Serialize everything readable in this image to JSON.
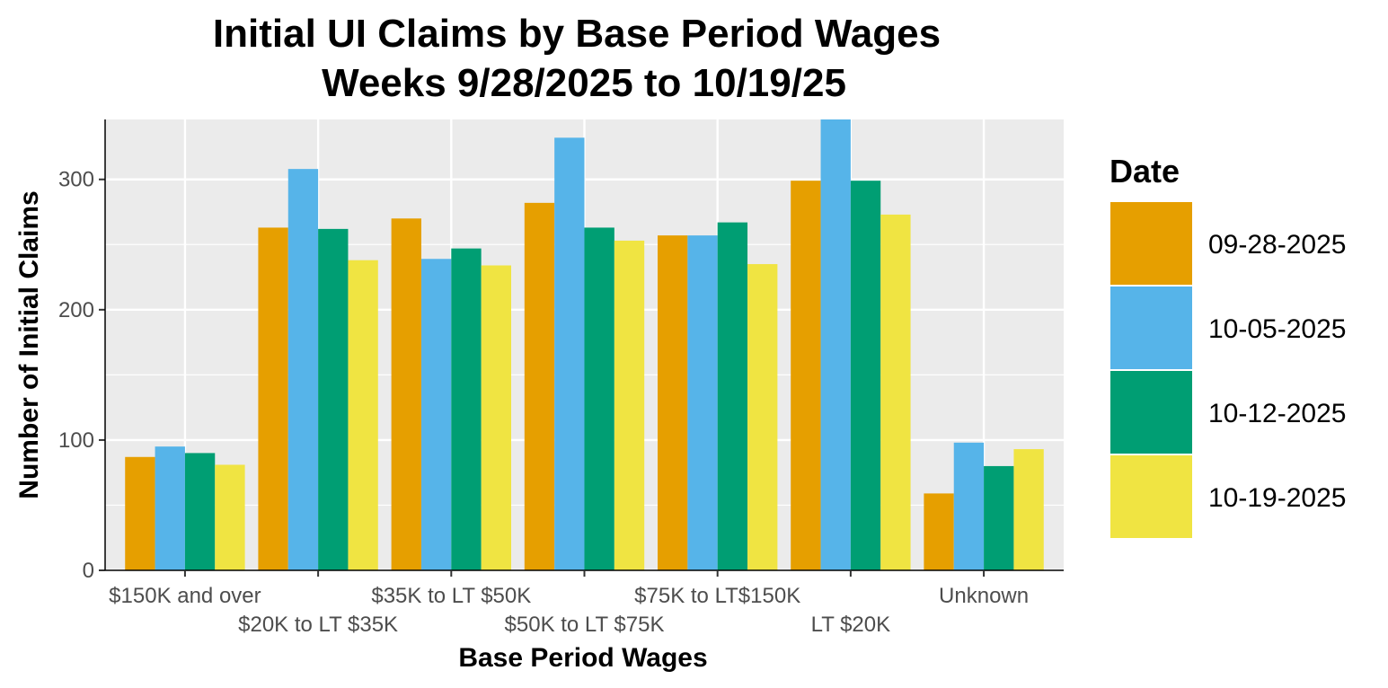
{
  "chart_data": {
    "type": "bar",
    "title": "Initial UI Claims by Base Period Wages",
    "subtitle": "Weeks 9/28/2025 to 10/19/25",
    "xlabel": "Base Period Wages",
    "ylabel": "Number of Initial Claims",
    "ylim": [
      0,
      346
    ],
    "yticks": [
      0,
      100,
      200,
      300
    ],
    "categories": [
      "$150K and over",
      "$20K to LT $35K",
      "$35K to LT $50K",
      "$50K to LT $75K",
      "$75K to LT$150K",
      "LT $20K",
      "Unknown"
    ],
    "series": [
      {
        "name": "09-28-2025",
        "color": "#E69F00",
        "values": [
          87,
          263,
          270,
          282,
          257,
          299,
          59
        ]
      },
      {
        "name": "10-05-2025",
        "color": "#56B4E9",
        "values": [
          95,
          308,
          239,
          332,
          257,
          347,
          98
        ]
      },
      {
        "name": "10-12-2025",
        "color": "#009E73",
        "values": [
          90,
          262,
          247,
          263,
          267,
          299,
          80
        ]
      },
      {
        "name": "10-19-2025",
        "color": "#F0E442",
        "values": [
          81,
          238,
          234,
          253,
          235,
          273,
          93
        ]
      }
    ],
    "legend": {
      "title": "Date",
      "position": "right"
    },
    "grid": true,
    "panel_background": "#EBEBEB"
  }
}
